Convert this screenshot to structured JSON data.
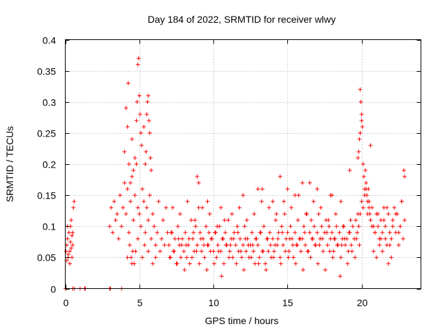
{
  "chart_data": {
    "type": "scatter",
    "title": "Day 184 of 2022, SRMTID for receiver wlwy",
    "xlabel": "GPS time / hours",
    "ylabel": "SRMTID / TECUs",
    "xlim": [
      0,
      24
    ],
    "ylim": [
      0,
      0.4
    ],
    "xticks": [
      0,
      5,
      10,
      15,
      20
    ],
    "yticks": [
      0,
      0.05,
      0.1,
      0.15,
      0.2,
      0.25,
      0.3,
      0.35,
      0.4
    ],
    "xtick_labels": [
      "0",
      "5",
      "10",
      "15",
      "20"
    ],
    "ytick_labels": [
      "0",
      "0.05",
      "0.1",
      "0.15",
      "0.2",
      "0.25",
      "0.3",
      "0.35",
      "0.4"
    ],
    "grid": true,
    "marker": "+",
    "color": "#ff0000",
    "series": [
      {
        "name": "SRMTID",
        "x": [
          0.05,
          0.1,
          0.15,
          0.2,
          0.25,
          0.3,
          0.35,
          0.4,
          0.45,
          0.5,
          0.55,
          0.6,
          0.1,
          0.2,
          0.3,
          0.4,
          0.5,
          0.15,
          0.35,
          0.45,
          0.02,
          0.05,
          0.5,
          0.6,
          1.0,
          1.3,
          1.35,
          3.0,
          3.05,
          3.8,
          3.0,
          3.1,
          3.2,
          3.3,
          3.4,
          3.5,
          3.6,
          3.7,
          3.8,
          3.9,
          4.0,
          4.1,
          4.2,
          4.3,
          4.4,
          4.5,
          4.6,
          4.7,
          4.8,
          4.9,
          5.0,
          5.1,
          5.2,
          5.3,
          5.4,
          5.5,
          5.6,
          5.7,
          5.8,
          5.9,
          6.0,
          6.1,
          6.2,
          6.3,
          6.4,
          6.5,
          6.6,
          6.7,
          6.8,
          6.9,
          4.0,
          4.1,
          4.2,
          4.25,
          4.3,
          4.5,
          4.6,
          4.7,
          4.8,
          4.85,
          4.9,
          4.95,
          5.0,
          5.05,
          5.1,
          5.15,
          5.3,
          5.4,
          5.45,
          5.5,
          5.55,
          5.6,
          5.65,
          5.7,
          5.75,
          5.8,
          4.4,
          4.45,
          4.55,
          4.65,
          4.2,
          4.35,
          4.5,
          4.75,
          4.9,
          5.2,
          5.35,
          5.6,
          5.9,
          6.1,
          7.0,
          7.1,
          7.2,
          7.3,
          7.4,
          7.5,
          7.6,
          7.7,
          7.8,
          7.9,
          8.0,
          8.1,
          8.2,
          8.3,
          8.4,
          8.5,
          8.6,
          8.7,
          8.8,
          8.9,
          9.0,
          9.1,
          9.2,
          9.3,
          9.4,
          9.5,
          9.6,
          9.7,
          9.8,
          9.9,
          10.0,
          10.1,
          10.2,
          10.3,
          10.4,
          10.5,
          10.6,
          10.7,
          10.8,
          10.9,
          11.0,
          11.1,
          11.2,
          11.3,
          11.4,
          11.5,
          11.6,
          11.7,
          11.8,
          11.9,
          12.0,
          12.1,
          12.2,
          12.3,
          12.4,
          12.5,
          12.6,
          12.7,
          12.8,
          12.9,
          13.0,
          13.1,
          13.2,
          13.3,
          13.4,
          13.5,
          13.6,
          13.7,
          13.8,
          13.9,
          14.0,
          14.1,
          14.2,
          14.3,
          14.4,
          14.5,
          14.6,
          14.7,
          14.8,
          14.9,
          15.0,
          15.1,
          15.2,
          15.3,
          15.4,
          15.5,
          15.6,
          15.7,
          15.8,
          15.9,
          16.0,
          16.1,
          16.2,
          16.3,
          16.4,
          16.5,
          16.6,
          16.7,
          16.8,
          16.9,
          17.0,
          17.1,
          17.2,
          17.3,
          17.4,
          17.5,
          17.6,
          17.7,
          17.8,
          17.9,
          18.0,
          18.1,
          18.2,
          18.3,
          18.4,
          18.5,
          18.6,
          18.7,
          18.8,
          18.9,
          19.0,
          19.1,
          19.2,
          19.3,
          19.4,
          19.5,
          19.6,
          19.7,
          19.8,
          19.9,
          20.0,
          20.1,
          20.2,
          20.3,
          20.4,
          20.5,
          20.6,
          20.7,
          20.8,
          20.9,
          21.0,
          21.1,
          21.2,
          21.3,
          21.4,
          21.5,
          21.6,
          21.7,
          21.8,
          21.9,
          22.0,
          22.1,
          22.2,
          22.3,
          22.4,
          22.5,
          22.6,
          22.7,
          22.8,
          22.9,
          7.05,
          7.55,
          8.05,
          8.55,
          9.05,
          9.55,
          10.05,
          10.55,
          11.05,
          11.55,
          12.05,
          12.55,
          13.05,
          13.55,
          14.05,
          14.55,
          15.05,
          15.55,
          16.05,
          16.55,
          17.05,
          17.55,
          18.05,
          18.55,
          19.05,
          19.55,
          7.25,
          7.75,
          8.25,
          8.75,
          9.25,
          9.75,
          10.25,
          10.75,
          11.25,
          11.75,
          12.25,
          12.75,
          13.25,
          13.75,
          14.25,
          14.75,
          15.25,
          15.75,
          16.25,
          16.75,
          17.25,
          17.75,
          18.25,
          18.75,
          19.25,
          19.75,
          8.9,
          9.0,
          13.3,
          14.5,
          15.5,
          16.0,
          17.0,
          17.9,
          18.6,
          19.2,
          9.6,
          10.5,
          12.0,
          13.0,
          14.0,
          15.0,
          16.5,
          18.0,
          19.9,
          19.95,
          20.0,
          20.05,
          19.85,
          19.8,
          20.1,
          20.15,
          20.2,
          20.25,
          20.3,
          20.35,
          20.4,
          20.45,
          20.5,
          20.55,
          20.6,
          19.75,
          19.9,
          20.0,
          20.7,
          20.9,
          21.1,
          21.3,
          21.5,
          21.7,
          21.9,
          22.1,
          22.3,
          22.5,
          22.7,
          22.85,
          22.9,
          20.8,
          21.0,
          21.2,
          21.4,
          21.6,
          21.8,
          22.0,
          7.15,
          7.65,
          8.15,
          8.65,
          9.15,
          9.65,
          10.15,
          10.65,
          11.15,
          11.65,
          12.15,
          12.65,
          13.15,
          13.65,
          14.15,
          14.65,
          15.15,
          15.65,
          16.15,
          16.65,
          17.15,
          17.65,
          18.15,
          18.65,
          19.15,
          19.65,
          7.35,
          7.85,
          8.35,
          8.85,
          9.35,
          9.85,
          10.35,
          10.85,
          11.35,
          11.85,
          12.35,
          12.85,
          13.35,
          13.85,
          14.35,
          14.85,
          15.35,
          15.85,
          16.35,
          16.85,
          17.35,
          17.85,
          18.35,
          18.85,
          19.35,
          19.85
        ],
        "y": [
          0.06,
          0.07,
          0.08,
          0.05,
          0.09,
          0.06,
          0.1,
          0.11,
          0.05,
          0.07,
          0.13,
          0.14,
          0.045,
          0.055,
          0.04,
          0.065,
          0.09,
          0.1,
          0.075,
          0.085,
          0.0,
          0.0,
          0.0,
          0.0,
          0.0,
          0.0,
          0.0,
          0.0,
          0.0,
          0.0,
          0.1,
          0.13,
          0.09,
          0.14,
          0.11,
          0.12,
          0.08,
          0.15,
          0.1,
          0.13,
          0.17,
          0.12,
          0.16,
          0.09,
          0.14,
          0.18,
          0.11,
          0.15,
          0.2,
          0.13,
          0.12,
          0.1,
          0.16,
          0.14,
          0.09,
          0.13,
          0.11,
          0.15,
          0.08,
          0.12,
          0.1,
          0.07,
          0.09,
          0.14,
          0.06,
          0.08,
          0.11,
          0.07,
          0.13,
          0.09,
          0.22,
          0.29,
          0.26,
          0.33,
          0.2,
          0.24,
          0.19,
          0.21,
          0.27,
          0.3,
          0.36,
          0.37,
          0.31,
          0.28,
          0.25,
          0.23,
          0.26,
          0.2,
          0.22,
          0.28,
          0.3,
          0.31,
          0.27,
          0.25,
          0.21,
          0.19,
          0.17,
          0.05,
          0.06,
          0.04,
          0.05,
          0.07,
          0.04,
          0.06,
          0.08,
          0.05,
          0.07,
          0.06,
          0.04,
          0.05,
          0.07,
          0.05,
          0.09,
          0.06,
          0.08,
          0.04,
          0.1,
          0.07,
          0.05,
          0.08,
          0.06,
          0.09,
          0.05,
          0.07,
          0.04,
          0.11,
          0.08,
          0.06,
          0.1,
          0.07,
          0.13,
          0.09,
          0.06,
          0.08,
          0.05,
          0.1,
          0.07,
          0.09,
          0.06,
          0.08,
          0.06,
          0.09,
          0.05,
          0.07,
          0.1,
          0.06,
          0.08,
          0.04,
          0.09,
          0.07,
          0.11,
          0.06,
          0.08,
          0.05,
          0.09,
          0.07,
          0.1,
          0.06,
          0.08,
          0.05,
          0.07,
          0.1,
          0.06,
          0.08,
          0.05,
          0.07,
          0.09,
          0.06,
          0.04,
          0.08,
          0.07,
          0.05,
          0.09,
          0.06,
          0.1,
          0.04,
          0.08,
          0.06,
          0.09,
          0.05,
          0.08,
          0.06,
          0.11,
          0.07,
          0.09,
          0.05,
          0.1,
          0.07,
          0.12,
          0.08,
          0.09,
          0.06,
          0.1,
          0.08,
          0.05,
          0.09,
          0.07,
          0.11,
          0.08,
          0.06,
          0.08,
          0.1,
          0.07,
          0.12,
          0.06,
          0.09,
          0.11,
          0.08,
          0.1,
          0.07,
          0.09,
          0.12,
          0.08,
          0.1,
          0.06,
          0.09,
          0.11,
          0.07,
          0.1,
          0.08,
          0.09,
          0.06,
          0.08,
          0.1,
          0.07,
          0.09,
          0.05,
          0.08,
          0.1,
          0.07,
          0.08,
          0.06,
          0.09,
          0.07,
          0.1,
          0.08,
          0.11,
          0.09,
          0.1,
          0.12,
          0.14,
          0.13,
          0.15,
          0.16,
          0.12,
          0.14,
          0.11,
          0.13,
          0.1,
          0.09,
          0.12,
          0.1,
          0.08,
          0.11,
          0.09,
          0.13,
          0.1,
          0.07,
          0.12,
          0.09,
          0.08,
          0.11,
          0.13,
          0.09,
          0.12,
          0.07,
          0.1,
          0.14,
          0.08,
          0.11,
          0.05,
          0.04,
          0.03,
          0.05,
          0.04,
          0.03,
          0.04,
          0.02,
          0.05,
          0.04,
          0.03,
          0.05,
          0.04,
          0.03,
          0.05,
          0.04,
          0.05,
          0.04,
          0.03,
          0.05,
          0.04,
          0.03,
          0.05,
          0.02,
          0.04,
          0.05,
          0.13,
          0.12,
          0.14,
          0.11,
          0.13,
          0.12,
          0.1,
          0.11,
          0.12,
          0.13,
          0.11,
          0.12,
          0.14,
          0.13,
          0.12,
          0.14,
          0.13,
          0.15,
          0.12,
          0.14,
          0.13,
          0.11,
          0.12,
          0.1,
          0.11,
          0.12,
          0.18,
          0.17,
          0.16,
          0.18,
          0.15,
          0.17,
          0.16,
          0.15,
          0.14,
          0.19,
          0.14,
          0.13,
          0.15,
          0.16,
          0.14,
          0.16,
          0.17,
          0.15,
          0.32,
          0.3,
          0.28,
          0.26,
          0.24,
          0.22,
          0.2,
          0.18,
          0.16,
          0.19,
          0.17,
          0.15,
          0.14,
          0.16,
          0.13,
          0.12,
          0.23,
          0.21,
          0.25,
          0.27,
          0.1,
          0.09,
          0.12,
          0.08,
          0.11,
          0.13,
          0.07,
          0.1,
          0.12,
          0.09,
          0.14,
          0.19,
          0.18,
          0.06,
          0.05,
          0.07,
          0.06,
          0.08,
          0.04,
          0.05,
          0.09,
          0.08,
          0.07,
          0.09,
          0.08,
          0.07,
          0.09,
          0.08,
          0.07,
          0.09,
          0.08,
          0.07,
          0.09,
          0.08,
          0.07,
          0.09,
          0.08,
          0.07,
          0.09,
          0.08,
          0.07,
          0.09,
          0.08,
          0.07,
          0.09,
          0.08,
          0.06,
          0.07,
          0.08,
          0.06,
          0.07,
          0.08,
          0.06,
          0.07,
          0.08,
          0.06,
          0.07,
          0.08,
          0.06,
          0.07,
          0.08,
          0.06,
          0.07,
          0.08,
          0.06,
          0.07,
          0.08,
          0.06,
          0.07,
          0.08,
          0.06,
          0.07
        ]
      }
    ]
  }
}
